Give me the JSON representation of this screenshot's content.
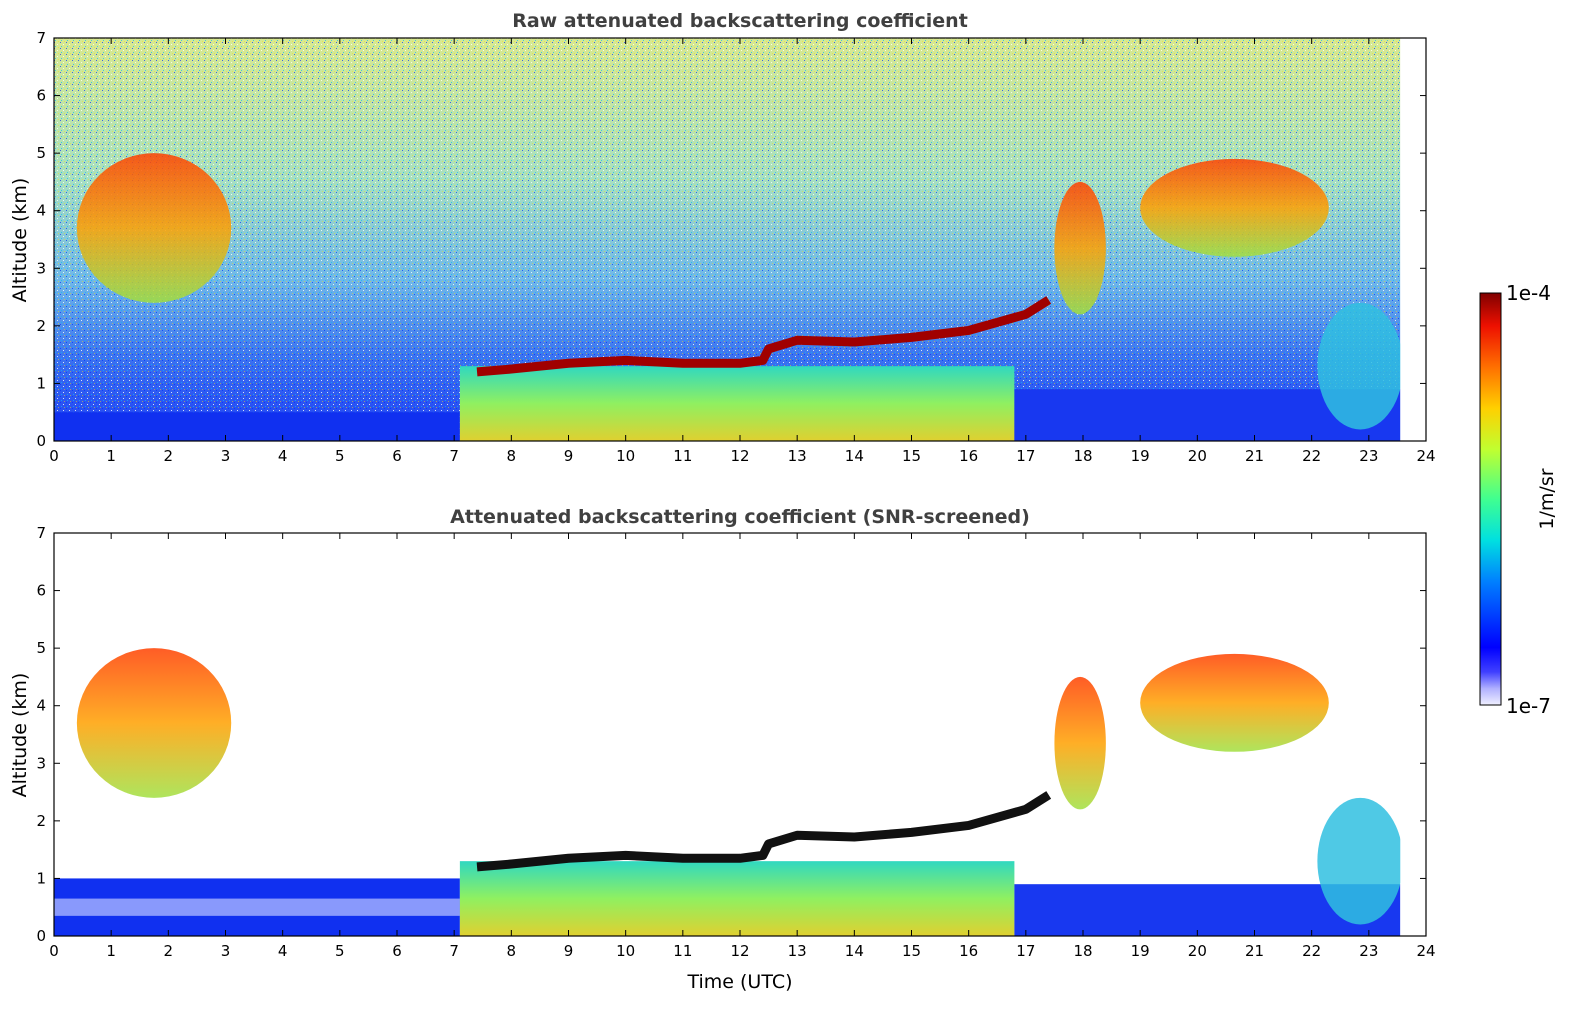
{
  "chart_data": [
    {
      "type": "heatmap",
      "title": "Raw attenuated backscattering coefficient",
      "xlabel": "",
      "ylabel": "Altitude (km)",
      "xlim": [
        0,
        24
      ],
      "ylim": [
        0,
        7
      ],
      "x_ticks": [
        "0",
        "1",
        "2",
        "3",
        "4",
        "5",
        "6",
        "7",
        "8",
        "9",
        "10",
        "11",
        "12",
        "13",
        "14",
        "15",
        "16",
        "17",
        "18",
        "19",
        "20",
        "21",
        "22",
        "23",
        "24"
      ],
      "y_ticks": [
        "0",
        "1",
        "2",
        "3",
        "4",
        "5",
        "6",
        "7"
      ],
      "data_coverage_hours": [
        0,
        23.55
      ],
      "features": [
        {
          "kind": "surface-aerosol-layer",
          "x": [
            0,
            7.1
          ],
          "y": [
            0,
            0.5
          ]
        },
        {
          "kind": "boundary-layer",
          "x": [
            7.1,
            16.8
          ],
          "y": [
            0,
            1.3
          ]
        },
        {
          "kind": "strong-layer-top",
          "points": [
            [
              7.4,
              1.2
            ],
            [
              8,
              1.25
            ],
            [
              9,
              1.35
            ],
            [
              10,
              1.4
            ],
            [
              11,
              1.35
            ],
            [
              12,
              1.35
            ],
            [
              12.4,
              1.4
            ],
            [
              12.5,
              1.6
            ],
            [
              13,
              1.75
            ],
            [
              14,
              1.72
            ],
            [
              15,
              1.8
            ],
            [
              16,
              1.92
            ],
            [
              17,
              2.2
            ],
            [
              17.4,
              2.45
            ]
          ]
        },
        {
          "kind": "cloud",
          "x": [
            0.4,
            3.1
          ],
          "y": [
            2.4,
            5.0
          ]
        },
        {
          "kind": "cloud",
          "x": [
            17.5,
            18.4
          ],
          "y": [
            2.2,
            4.5
          ]
        },
        {
          "kind": "cloud",
          "x": [
            19.0,
            22.3
          ],
          "y": [
            3.2,
            4.9
          ]
        },
        {
          "kind": "low-cloud",
          "x": [
            22.1,
            23.6
          ],
          "y": [
            0.2,
            2.4
          ]
        }
      ],
      "noise": "high-altitude background noise above ~2 km"
    },
    {
      "type": "heatmap",
      "title": "Attenuated backscattering coefficient (SNR-screened)",
      "xlabel": "Time (UTC)",
      "ylabel": "Altitude (km)",
      "xlim": [
        0,
        24
      ],
      "ylim": [
        0,
        7
      ],
      "x_ticks": [
        "0",
        "1",
        "2",
        "3",
        "4",
        "5",
        "6",
        "7",
        "8",
        "9",
        "10",
        "11",
        "12",
        "13",
        "14",
        "15",
        "16",
        "17",
        "18",
        "19",
        "20",
        "21",
        "22",
        "23",
        "24"
      ],
      "y_ticks": [
        "0",
        "1",
        "2",
        "3",
        "4",
        "5",
        "6",
        "7"
      ],
      "data_coverage_hours": [
        0,
        23.55
      ],
      "features": [
        {
          "kind": "surface-aerosol-layer",
          "x": [
            0,
            7.1
          ],
          "y": [
            0,
            1.0
          ]
        },
        {
          "kind": "boundary-layer",
          "x": [
            7.1,
            16.8
          ],
          "y": [
            0,
            1.3
          ]
        },
        {
          "kind": "saturated-layer-top",
          "points": [
            [
              7.4,
              1.2
            ],
            [
              8,
              1.25
            ],
            [
              9,
              1.35
            ],
            [
              10,
              1.4
            ],
            [
              11,
              1.35
            ],
            [
              12,
              1.35
            ],
            [
              12.4,
              1.4
            ],
            [
              12.5,
              1.6
            ],
            [
              13,
              1.75
            ],
            [
              14,
              1.72
            ],
            [
              15,
              1.8
            ],
            [
              16,
              1.92
            ],
            [
              17,
              2.2
            ],
            [
              17.4,
              2.45
            ]
          ]
        },
        {
          "kind": "cloud",
          "x": [
            0.4,
            3.1
          ],
          "y": [
            2.4,
            5.0
          ]
        },
        {
          "kind": "cloud",
          "x": [
            17.5,
            18.4
          ],
          "y": [
            2.2,
            4.5
          ]
        },
        {
          "kind": "cloud",
          "x": [
            19.0,
            22.3
          ],
          "y": [
            3.2,
            4.9
          ]
        },
        {
          "kind": "low-cloud",
          "x": [
            22.1,
            23.6
          ],
          "y": [
            0.2,
            2.4
          ]
        }
      ],
      "noise": "screened out (white)"
    }
  ],
  "colorbar": {
    "label": "1/m/sr",
    "max_label": "1e-4",
    "min_label": "1e-7",
    "scale": "log",
    "range": [
      1e-07,
      0.0001
    ],
    "colormap": "jet"
  }
}
